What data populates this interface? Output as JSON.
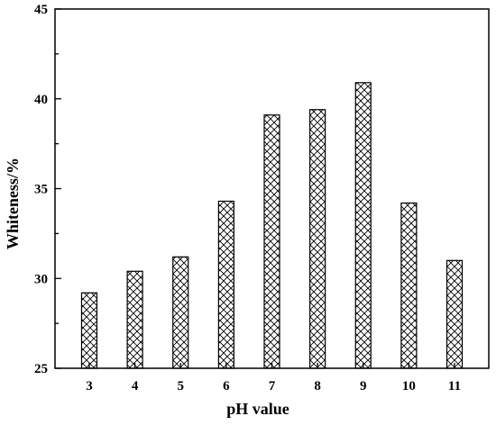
{
  "chart_data": {
    "type": "bar",
    "categories": [
      "3",
      "4",
      "5",
      "6",
      "7",
      "8",
      "9",
      "10",
      "11"
    ],
    "values": [
      29.2,
      30.4,
      31.2,
      34.3,
      39.1,
      39.4,
      40.9,
      34.2,
      31.0
    ],
    "title": "",
    "xlabel": "pH value",
    "ylabel": "Whiteness/%",
    "ylim": [
      25,
      45
    ],
    "yticks": [
      25,
      30,
      35,
      40,
      45
    ],
    "grid": false,
    "legend": "none",
    "bar_fill": "crosshatch",
    "colors": {
      "bar_stroke": "#000000",
      "hatch": "#000000",
      "background": "#ffffff"
    }
  }
}
